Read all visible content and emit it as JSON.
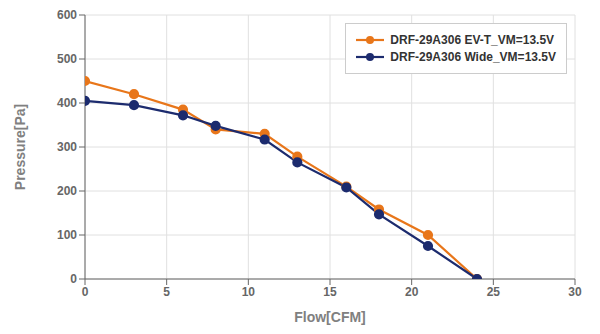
{
  "chart_data": {
    "type": "line",
    "x": [
      0,
      3,
      6,
      8,
      11,
      13,
      16,
      18,
      21,
      24
    ],
    "series": [
      {
        "name": "DRF-29A306 EV-T_VM=13.5V",
        "color": "#E8761A",
        "values": [
          450,
          420,
          385,
          340,
          330,
          278,
          210,
          158,
          100,
          0
        ]
      },
      {
        "name": "DRF-29A306 Wide_VM=13.5V",
        "color": "#1C2B6E",
        "values": [
          405,
          395,
          372,
          348,
          317,
          265,
          208,
          147,
          75,
          0
        ]
      }
    ],
    "xlabel": "Flow[CFM]",
    "ylabel": "Pressure[Pa]",
    "xlim": [
      0,
      30
    ],
    "ylim": [
      0,
      600
    ],
    "xticks": [
      0,
      5,
      10,
      15,
      20,
      25,
      30
    ],
    "yticks": [
      0,
      100,
      200,
      300,
      400,
      500,
      600
    ],
    "grid": true,
    "legend": "upper right",
    "marker": "circle"
  }
}
